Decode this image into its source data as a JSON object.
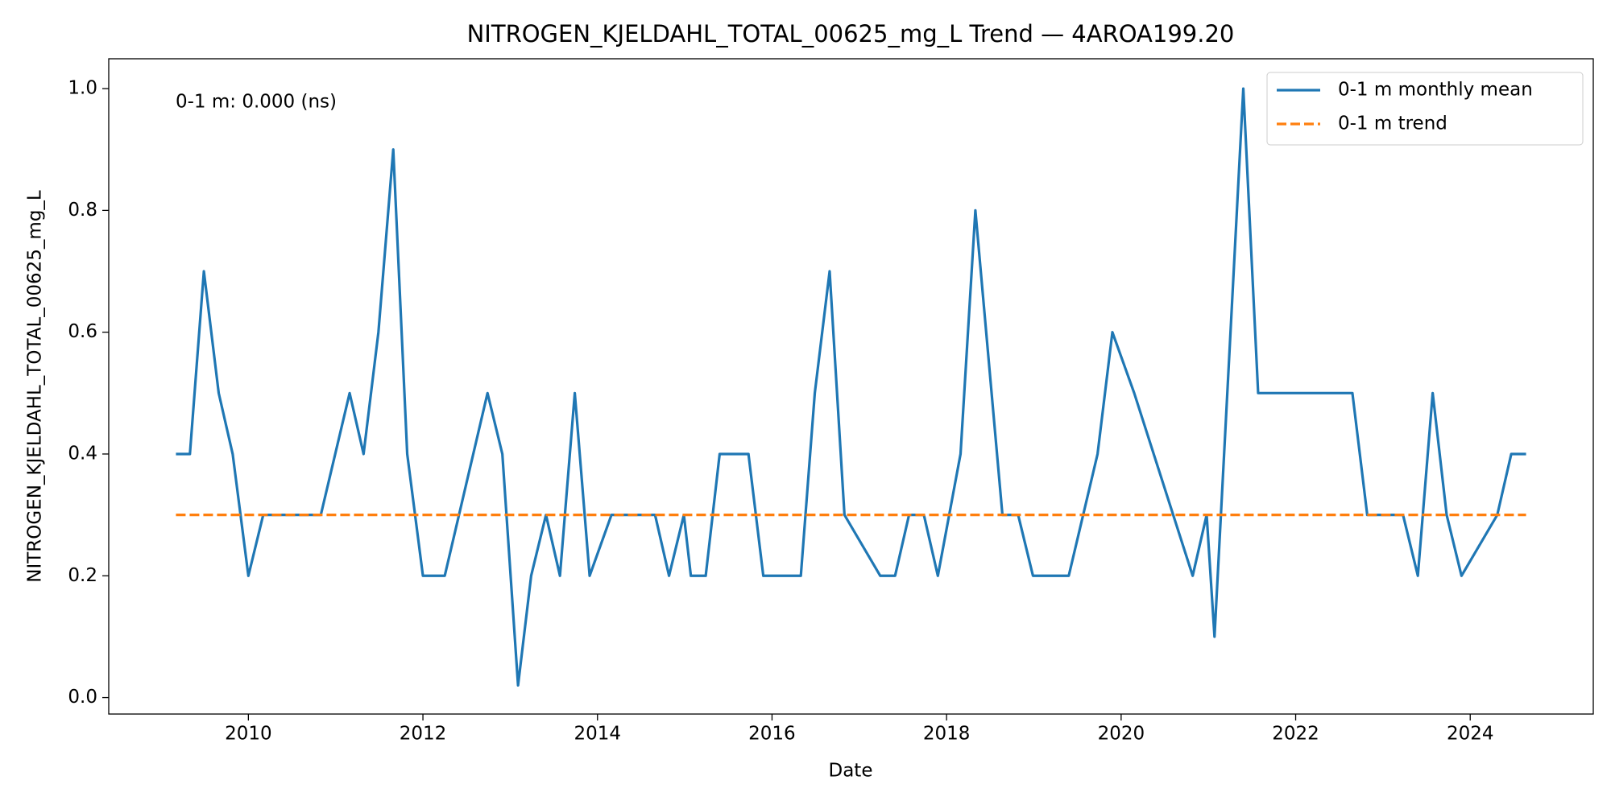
{
  "chart_data": {
    "type": "line",
    "title": "NITROGEN_KJELDAHL_TOTAL_00625_mg_L Trend — 4AROA199.20",
    "x_label": "Date",
    "y_label": "NITROGEN_KJELDAHL_TOTAL_00625_mg_L",
    "annotation": "0-1 m: 0.000 (ns)",
    "legend": "upper right",
    "grid": false,
    "xlim": [
      2008.4,
      2025.41
    ],
    "xticks": [
      2010,
      2012,
      2014,
      2016,
      2018,
      2020,
      2022,
      2024
    ],
    "ylim": [
      -0.027,
      1.049
    ],
    "yticks": [
      {
        "value": 0,
        "label": "0.0"
      },
      {
        "value": 0.2,
        "label": "0.2"
      },
      {
        "value": 0.4,
        "label": "0.4"
      },
      {
        "value": 0.6,
        "label": "0.6"
      },
      {
        "value": 0.8,
        "label": "0.8"
      },
      {
        "value": 1,
        "label": "1.0"
      }
    ],
    "series": [
      {
        "name": "0-1 m monthly mean",
        "color": "#1f77b4",
        "linestyle": "solid",
        "x": [
          2009.17,
          2009.33,
          2009.49,
          2009.66,
          2009.82,
          2010.0,
          2010.17,
          2010.33,
          2010.83,
          2011.16,
          2011.32,
          2011.49,
          2011.66,
          2011.82,
          2012.0,
          2012.25,
          2012.74,
          2012.91,
          2013.09,
          2013.24,
          2013.41,
          2013.57,
          2013.74,
          2013.91,
          2014.16,
          2014.66,
          2014.82,
          2014.99,
          2015.07,
          2015.24,
          2015.4,
          2015.73,
          2015.9,
          2016.33,
          2016.49,
          2016.66,
          2016.83,
          2017.24,
          2017.41,
          2017.57,
          2017.74,
          2017.9,
          2018.16,
          2018.33,
          2018.64,
          2018.82,
          2018.99,
          2019.4,
          2019.73,
          2019.9,
          2020.15,
          2020.82,
          2020.98,
          2021.07,
          2021.4,
          2021.57,
          2022.65,
          2022.82,
          2023.23,
          2023.4,
          2023.57,
          2023.73,
          2023.9,
          2024.31,
          2024.47,
          2024.64
        ],
        "values": [
          0.4,
          0.4,
          0.7,
          0.5,
          0.4,
          0.2,
          0.3,
          0.3,
          0.3,
          0.5,
          0.4,
          0.6,
          0.9,
          0.4,
          0.2,
          0.2,
          0.5,
          0.4,
          0.02,
          0.2,
          0.3,
          0.2,
          0.5,
          0.2,
          0.3,
          0.3,
          0.2,
          0.3,
          0.2,
          0.2,
          0.4,
          0.4,
          0.2,
          0.2,
          0.5,
          0.7,
          0.3,
          0.2,
          0.2,
          0.3,
          0.3,
          0.2,
          0.4,
          0.8,
          0.3,
          0.3,
          0.2,
          0.2,
          0.4,
          0.6,
          0.5,
          0.2,
          0.3,
          0.1,
          1.0,
          0.5,
          0.5,
          0.3,
          0.3,
          0.2,
          0.5,
          0.3,
          0.2,
          0.3,
          0.4,
          0.4
        ]
      },
      {
        "name": "0-1 m trend",
        "color": "#ff7f0e",
        "linestyle": "dashed",
        "x": [
          2009.17,
          2024.64
        ],
        "values": [
          0.3,
          0.3
        ]
      }
    ]
  }
}
